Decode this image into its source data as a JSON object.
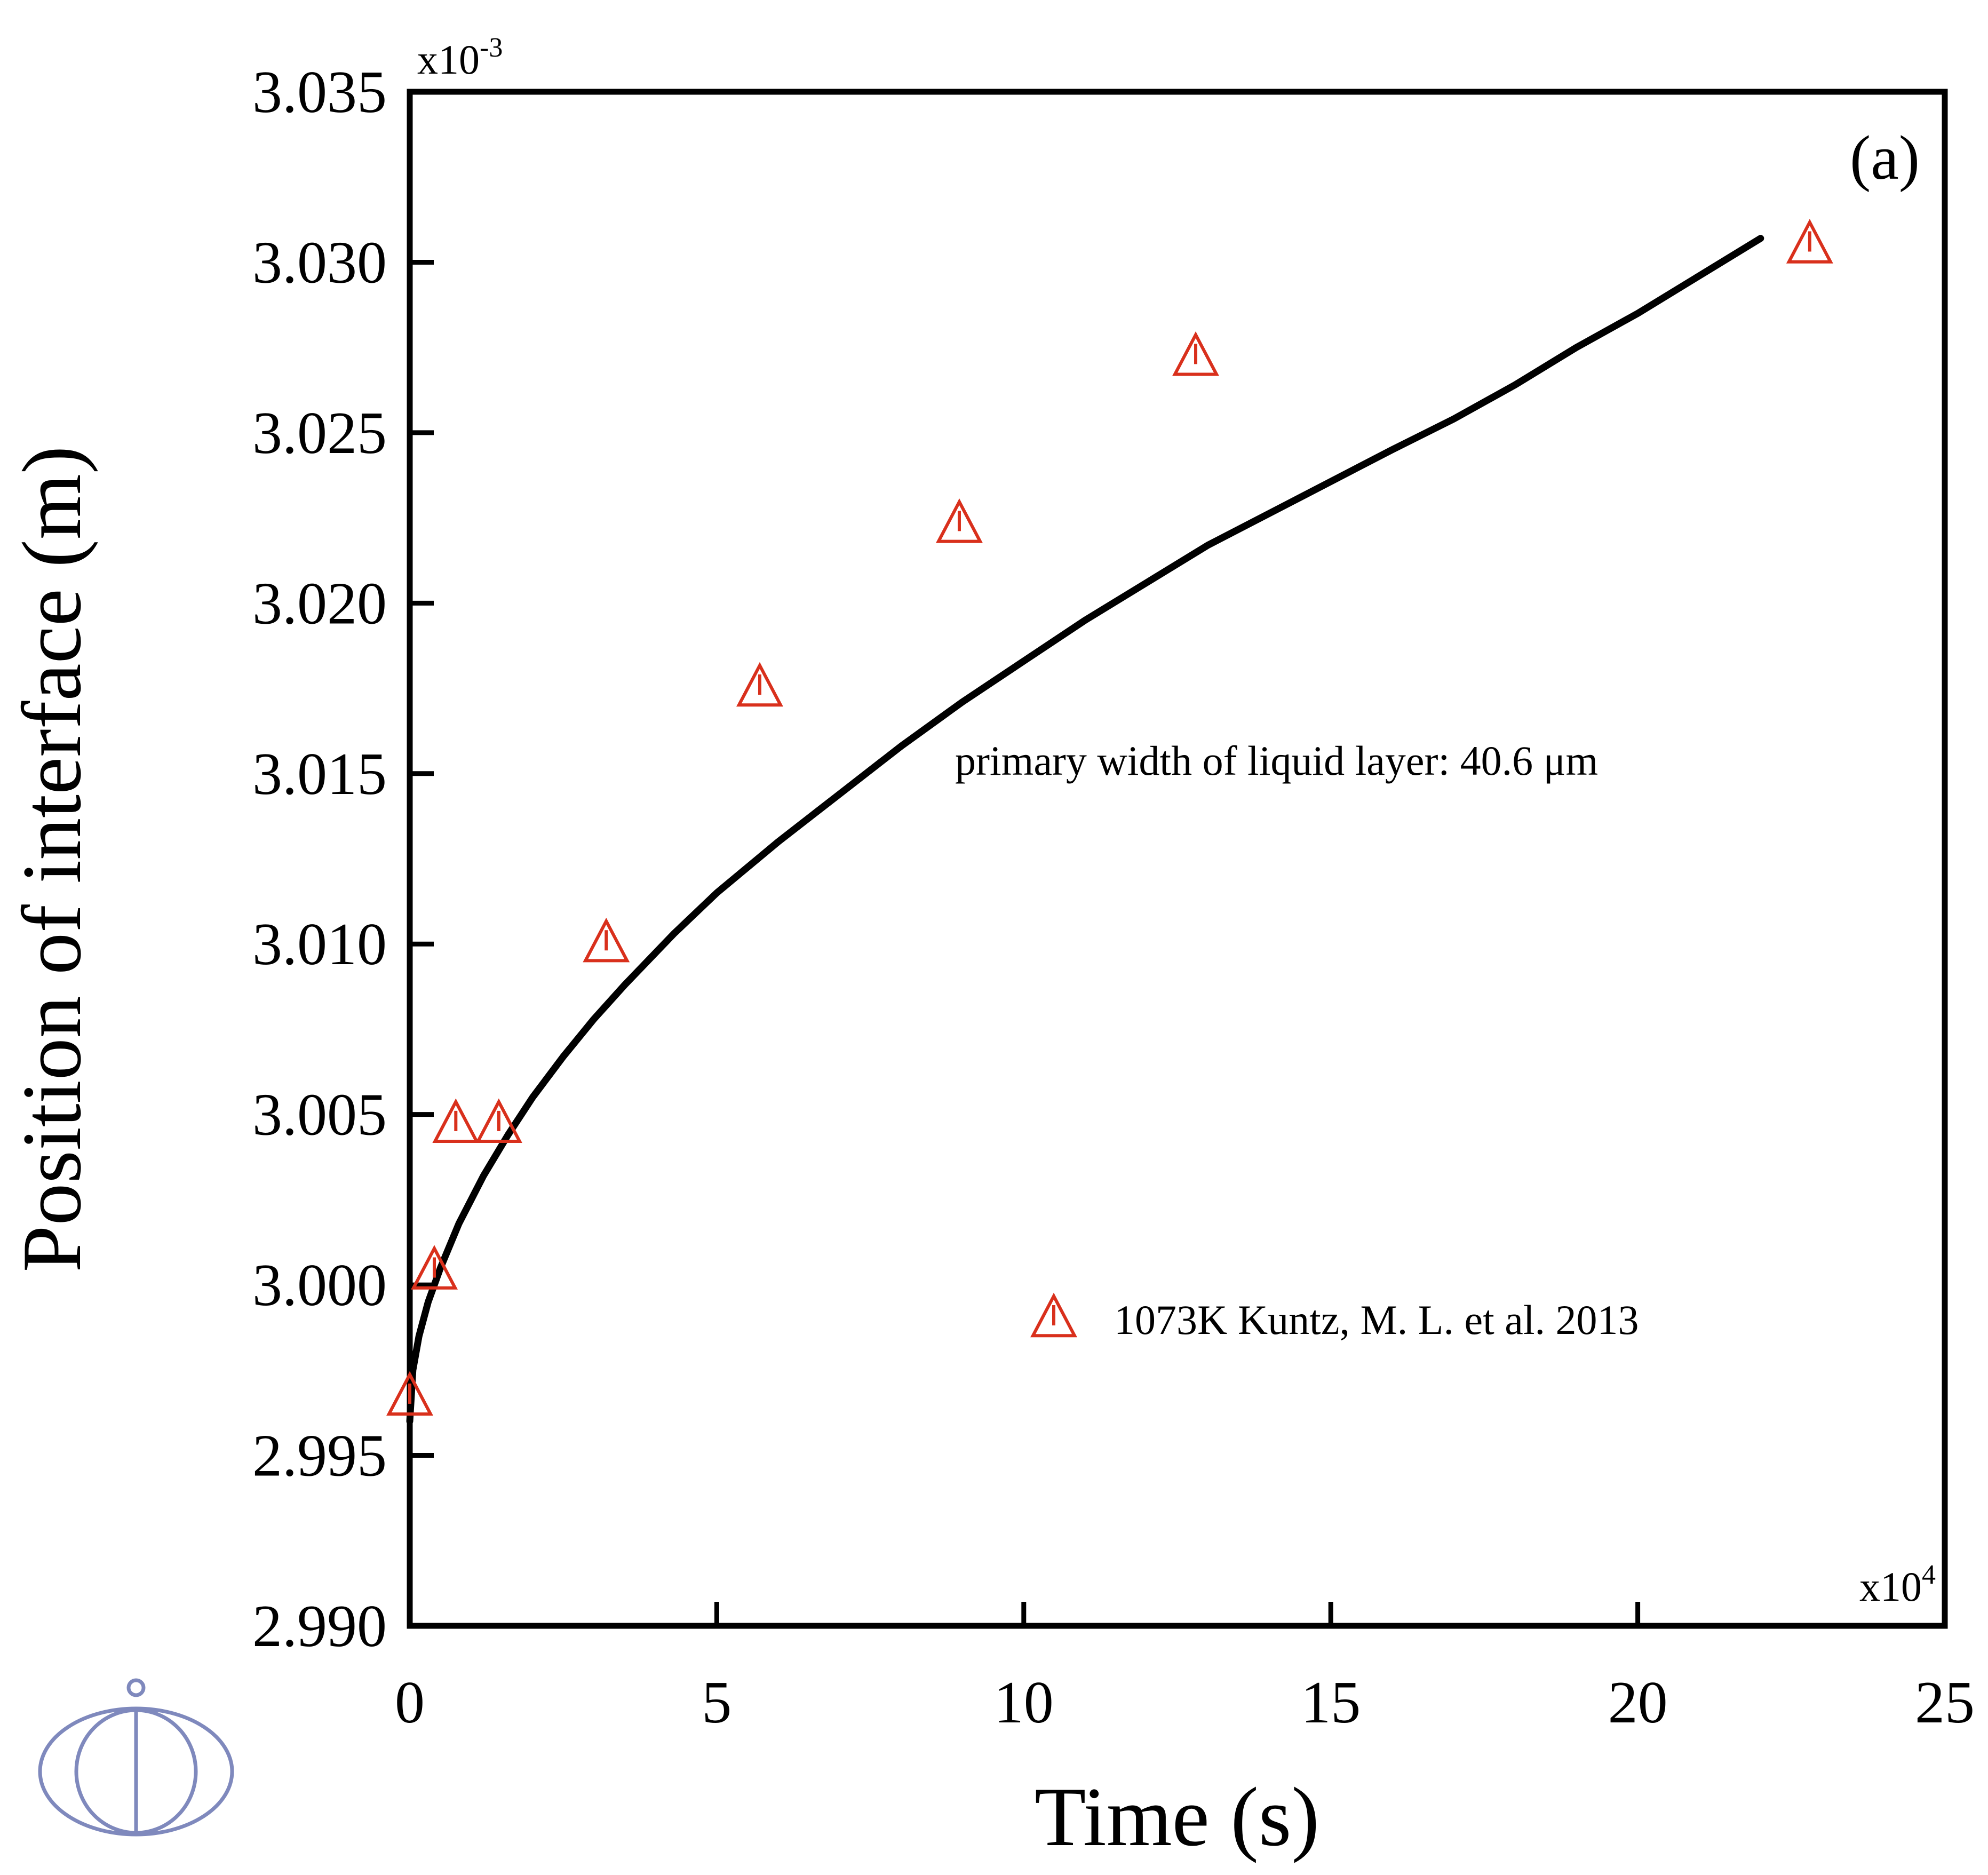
{
  "chart_data": {
    "type": "scatter",
    "title": "",
    "panel_label": "(a)",
    "xlabel": "Time (s)",
    "ylabel": "Position of interface (m)",
    "x_multiplier_label": {
      "base": "x10",
      "exponent": "4"
    },
    "y_multiplier_label": {
      "base": "x10",
      "exponent": "-3"
    },
    "xlim": [
      0,
      25
    ],
    "ylim": [
      2.99,
      3.035
    ],
    "xticks": [
      0,
      5,
      10,
      15,
      20,
      25
    ],
    "xtick_labels": [
      "0",
      "5",
      "10",
      "15",
      "20",
      "25"
    ],
    "yticks": [
      2.99,
      2.995,
      3.0,
      3.005,
      3.01,
      3.015,
      3.02,
      3.025,
      3.03,
      3.035
    ],
    "ytick_labels": [
      "2.990",
      "2.995",
      "3.000",
      "3.005",
      "3.010",
      "3.015",
      "3.020",
      "3.025",
      "3.030",
      "3.035"
    ],
    "grid": false,
    "annotation": "primary width of liquid layer: 40.6 μm",
    "legend": {
      "placement": "lower-right",
      "entries": [
        {
          "label": "1073K Kuntz, M. L. et al. 2013",
          "marker": "triangle-open",
          "color": "#d9301c"
        }
      ]
    },
    "series": [
      {
        "kind": "line",
        "color": "#000000",
        "x": [
          0.0,
          0.05,
          0.15,
          0.3,
          0.5,
          0.8,
          1.2,
          1.6,
          2.0,
          2.5,
          3.0,
          3.5,
          4.3,
          5.0,
          6.0,
          7.0,
          8.0,
          9.0,
          10.0,
          11.0,
          12.0,
          13.0,
          14.5,
          16.0,
          17.0,
          18.0,
          19.0,
          20.0,
          21.0,
          22.0
        ],
        "y": [
          2.996,
          2.9975,
          2.9985,
          2.9995,
          3.0005,
          3.0018,
          3.0032,
          3.0044,
          3.0055,
          3.0067,
          3.0078,
          3.0088,
          3.0103,
          3.0115,
          3.013,
          3.0144,
          3.0158,
          3.0171,
          3.0183,
          3.0195,
          3.0206,
          3.0217,
          3.0231,
          3.0245,
          3.0254,
          3.0264,
          3.0275,
          3.0285,
          3.0296,
          3.0307
        ]
      },
      {
        "kind": "scatter",
        "name": "1073K Kuntz, M. L. et al. 2013",
        "marker": "triangle-open",
        "color": "#d9301c",
        "x": [
          0.0,
          0.4,
          0.75,
          1.45,
          3.2,
          5.7,
          8.95,
          12.8,
          22.8
        ],
        "y": [
          2.9967,
          3.0004,
          3.0047,
          3.0047,
          3.01,
          3.0175,
          3.0223,
          3.0272,
          3.0305
        ]
      }
    ],
    "logo": {
      "name": "institution-seal-icon",
      "color": "#7f89bd"
    }
  }
}
